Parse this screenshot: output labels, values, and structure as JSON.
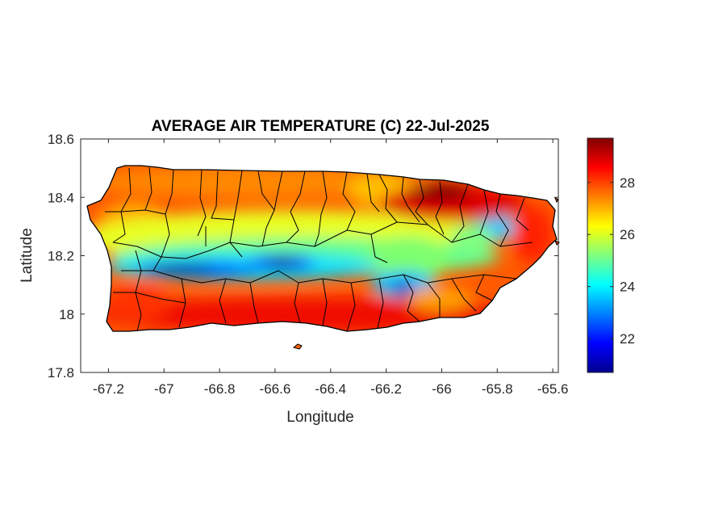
{
  "chart_data": {
    "type": "heatmap",
    "title": "AVERAGE AIR TEMPERATURE (C) 22-Jul-2025",
    "xlabel": "Longitude",
    "ylabel": "Latitude",
    "xlim": [
      -67.3,
      -65.58
    ],
    "ylim": [
      17.8,
      18.6
    ],
    "xticks": [
      -67.2,
      -67,
      -66.8,
      -66.6,
      -66.4,
      -66.2,
      -66,
      -65.8,
      -65.6
    ],
    "xtick_labels": [
      "-67.2",
      "-67",
      "-66.8",
      "-66.6",
      "-66.4",
      "-66.2",
      "-66",
      "-65.8",
      "-65.6"
    ],
    "yticks": [
      17.8,
      18,
      18.2,
      18.4,
      18.6
    ],
    "ytick_labels": [
      "17.8",
      "18",
      "18.2",
      "18.4",
      "18.6"
    ],
    "colorbar": {
      "colormap": "jet",
      "min": 20.7,
      "max": 29.7,
      "ticks": [
        22,
        24,
        26,
        28
      ],
      "tick_labels": [
        "22",
        "24",
        "26",
        "28"
      ]
    },
    "colors": {
      "cold": "#00008f",
      "cool": "#00bfff",
      "mild": "#80ff80",
      "warm": "#ffbf00",
      "hot": "#ff2000",
      "hottest": "#800000",
      "outline": "#000000"
    },
    "grid": false,
    "samples": [
      {
        "lon": -67.15,
        "lat": 18.25,
        "temp": 27.6
      },
      {
        "lon": -67.05,
        "lat": 18.45,
        "temp": 27.8
      },
      {
        "lon": -66.9,
        "lat": 18.16,
        "temp": 21.8
      },
      {
        "lon": -66.8,
        "lat": 18.15,
        "temp": 21.5
      },
      {
        "lon": -66.7,
        "lat": 18.18,
        "temp": 23.5
      },
      {
        "lon": -66.6,
        "lat": 18.17,
        "temp": 21.8
      },
      {
        "lon": -66.45,
        "lat": 18.2,
        "temp": 24.0
      },
      {
        "lon": -66.3,
        "lat": 18.22,
        "temp": 25.0
      },
      {
        "lon": -66.15,
        "lat": 18.18,
        "temp": 24.5
      },
      {
        "lon": -66.1,
        "lat": 18.1,
        "temp": 23.0
      },
      {
        "lon": -66.0,
        "lat": 18.43,
        "temp": 29.5
      },
      {
        "lon": -65.95,
        "lat": 18.4,
        "temp": 29.0
      },
      {
        "lon": -65.8,
        "lat": 18.3,
        "temp": 24.0
      },
      {
        "lon": -65.65,
        "lat": 18.3,
        "temp": 28.0
      },
      {
        "lon": -66.6,
        "lat": 18.0,
        "temp": 28.5
      },
      {
        "lon": -66.9,
        "lat": 18.0,
        "temp": 28.3
      },
      {
        "lon": -66.2,
        "lat": 17.98,
        "temp": 28.5
      },
      {
        "lon": -66.5,
        "lat": 18.47,
        "temp": 27.8
      }
    ]
  }
}
